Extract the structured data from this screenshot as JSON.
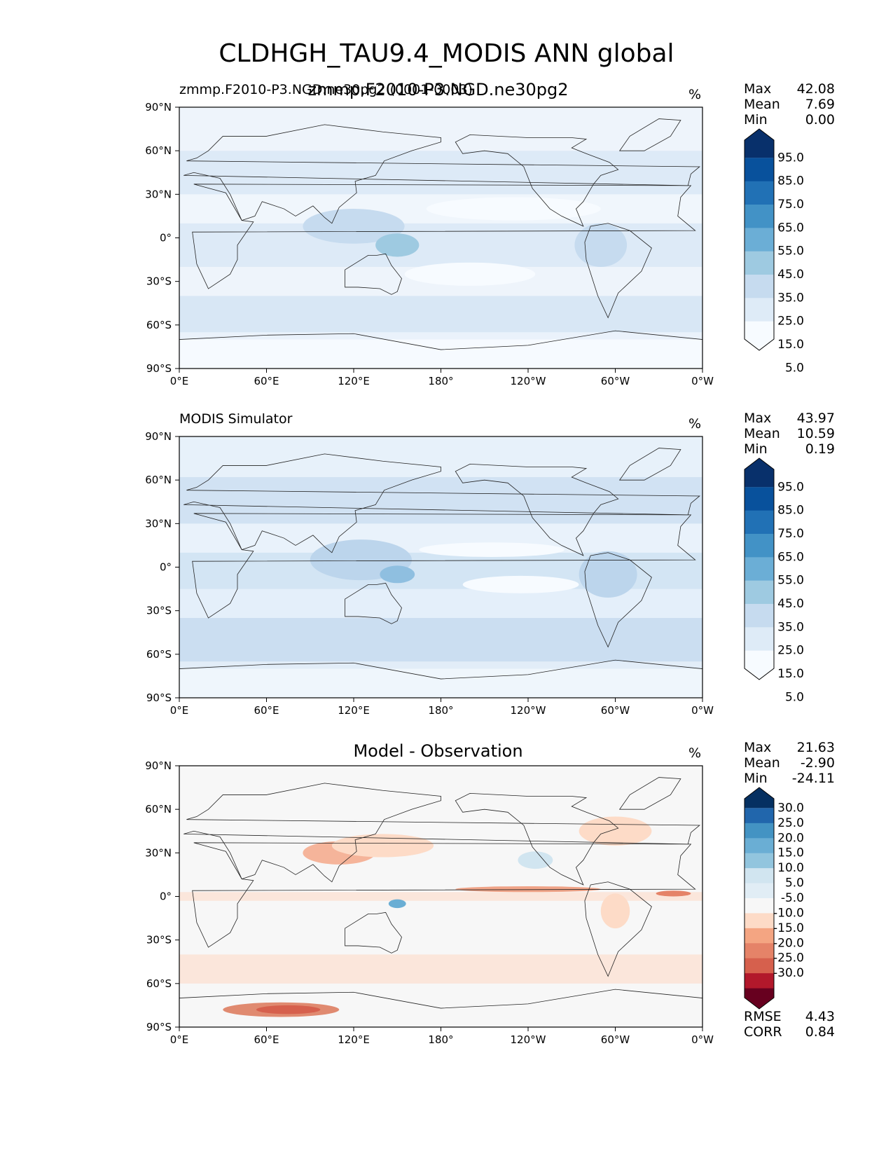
{
  "figure": {
    "title": "CLDHGH_TAU9.4_MODIS ANN global",
    "overlap_subtitle": "zmmp.F2010-P3.NGD.ne30pg2"
  },
  "chart_data": [
    {
      "type": "heatmap",
      "panel": "test",
      "title_left": "zmmp.F2010-P3.NGD.ne30pg2 (0001-0003)",
      "unit": "%",
      "stats": {
        "Max": "42.08",
        "Mean": "7.69",
        "Min": "0.00"
      },
      "xticks": [
        "0°E",
        "60°E",
        "120°E",
        "180°",
        "120°W",
        "60°W",
        "0°W"
      ],
      "yticks": [
        "90°N",
        "60°N",
        "30°N",
        "0°",
        "30°S",
        "60°S",
        "90°S"
      ],
      "xlim": [
        0,
        360
      ],
      "ylim": [
        -90,
        90
      ],
      "colorbar": {
        "labels": [
          "95.0",
          "85.0",
          "75.0",
          "65.0",
          "55.0",
          "45.0",
          "35.0",
          "25.0",
          "15.0",
          "5.0"
        ],
        "colors": [
          "#f7fbff",
          "#deebf7",
          "#c6dbef",
          "#9ecae1",
          "#6baed6",
          "#4292c6",
          "#2171b5",
          "#08519c",
          "#08306b"
        ]
      },
      "field": {
        "fill": "#eaf2fb",
        "bands": [
          {
            "lat": [
              -90,
              -70
            ],
            "color": "#f7fbff"
          },
          {
            "lat": [
              -65,
              -40
            ],
            "color": "#d6e5f4"
          },
          {
            "lat": [
              -40,
              -20
            ],
            "color": "#eef4fb"
          },
          {
            "lat": [
              -20,
              10
            ],
            "color": "#dce9f6"
          },
          {
            "lat": [
              10,
              30
            ],
            "color": "#f1f6fc"
          },
          {
            "lat": [
              30,
              60
            ],
            "color": "#dce9f6"
          },
          {
            "lat": [
              60,
              90
            ],
            "color": "#eef4fb"
          }
        ],
        "patches": [
          {
            "lon": 120,
            "lat": 8,
            "rx": 35,
            "ry": 12,
            "color": "#c6dbef"
          },
          {
            "lon": 150,
            "lat": -5,
            "rx": 15,
            "ry": 8,
            "color": "#9ecae1"
          },
          {
            "lon": 290,
            "lat": -5,
            "rx": 18,
            "ry": 15,
            "color": "#c6dbef"
          },
          {
            "lon": 200,
            "lat": -25,
            "rx": 45,
            "ry": 8,
            "color": "#f7fbff"
          },
          {
            "lon": 230,
            "lat": 20,
            "rx": 60,
            "ry": 8,
            "color": "#f7fbff"
          }
        ]
      }
    },
    {
      "type": "heatmap",
      "panel": "reference",
      "title_left": "MODIS Simulator",
      "unit": "%",
      "stats": {
        "Max": "43.97",
        "Mean": "10.59",
        "Min": "0.19"
      },
      "xticks": [
        "0°E",
        "60°E",
        "120°E",
        "180°",
        "120°W",
        "60°W",
        "0°W"
      ],
      "yticks": [
        "90°N",
        "60°N",
        "30°N",
        "0°",
        "30°S",
        "60°S",
        "90°S"
      ],
      "xlim": [
        0,
        360
      ],
      "ylim": [
        -90,
        90
      ],
      "colorbar": {
        "labels": [
          "95.0",
          "85.0",
          "75.0",
          "65.0",
          "55.0",
          "45.0",
          "35.0",
          "25.0",
          "15.0",
          "5.0"
        ],
        "colors": [
          "#f7fbff",
          "#deebf7",
          "#c6dbef",
          "#9ecae1",
          "#6baed6",
          "#4292c6",
          "#2171b5",
          "#08519c",
          "#08306b"
        ]
      },
      "field": {
        "fill": "#e2edf8",
        "bands": [
          {
            "lat": [
              -90,
              -70
            ],
            "color": "#f1f6fc"
          },
          {
            "lat": [
              -65,
              -35
            ],
            "color": "#c9dcf0"
          },
          {
            "lat": [
              -35,
              -15
            ],
            "color": "#e4eef9"
          },
          {
            "lat": [
              -15,
              10
            ],
            "color": "#d2e3f3"
          },
          {
            "lat": [
              10,
              30
            ],
            "color": "#eaf2fb"
          },
          {
            "lat": [
              30,
              62
            ],
            "color": "#cfe0f2"
          },
          {
            "lat": [
              62,
              90
            ],
            "color": "#e8f1fa"
          }
        ],
        "patches": [
          {
            "lon": 125,
            "lat": 5,
            "rx": 35,
            "ry": 14,
            "color": "#bcd5ec"
          },
          {
            "lon": 150,
            "lat": -5,
            "rx": 12,
            "ry": 6,
            "color": "#8fbfe0"
          },
          {
            "lon": 295,
            "lat": -5,
            "rx": 20,
            "ry": 16,
            "color": "#bcd5ec"
          },
          {
            "lon": 215,
            "lat": 12,
            "rx": 50,
            "ry": 5,
            "color": "#f7fbff"
          },
          {
            "lon": 235,
            "lat": -12,
            "rx": 40,
            "ry": 6,
            "color": "#f7fbff"
          }
        ]
      }
    },
    {
      "type": "heatmap",
      "panel": "difference",
      "title_center": "Model - Observation",
      "unit": "%",
      "stats": {
        "Max": "21.63",
        "Mean": "-2.90",
        "Min": "-24.11"
      },
      "metrics": {
        "RMSE": "4.43",
        "CORR": "0.84"
      },
      "xticks": [
        "0°E",
        "60°E",
        "120°E",
        "180°",
        "120°W",
        "60°W",
        "0°W"
      ],
      "yticks": [
        "90°N",
        "60°N",
        "30°N",
        "0°",
        "30°S",
        "60°S",
        "90°S"
      ],
      "xlim": [
        0,
        360
      ],
      "ylim": [
        -90,
        90
      ],
      "colorbar": {
        "labels": [
          "30.0",
          "25.0",
          "20.0",
          "15.0",
          "10.0",
          "5.0",
          "-5.0",
          "-10.0",
          "-15.0",
          "-20.0",
          "-25.0",
          "-30.0"
        ],
        "colors": [
          "#67001f",
          "#b2182b",
          "#d6604d",
          "#e58368",
          "#f4a582",
          "#fddbc7",
          "#f7f7f7",
          "#e1edf5",
          "#d1e5f0",
          "#92c5de",
          "#6aaed4",
          "#4393c3",
          "#2166ac",
          "#053061"
        ]
      },
      "field": {
        "fill": "#f7f7f7",
        "bands": [
          {
            "lat": [
              -60,
              -40
            ],
            "color": "#fbe3d7"
          },
          {
            "lat": [
              -3,
              3
            ],
            "color": "#fbe3d7"
          }
        ],
        "patches": [
          {
            "lon": 70,
            "lat": -78,
            "rx": 40,
            "ry": 5,
            "color": "#e08a70"
          },
          {
            "lon": 75,
            "lat": -78,
            "rx": 22,
            "ry": 3,
            "color": "#d6604d"
          },
          {
            "lon": 110,
            "lat": 30,
            "rx": 25,
            "ry": 8,
            "color": "#f5b49a"
          },
          {
            "lon": 140,
            "lat": 35,
            "rx": 35,
            "ry": 8,
            "color": "#fddbc7"
          },
          {
            "lon": 240,
            "lat": 5,
            "rx": 50,
            "ry": 2,
            "color": "#f0a488"
          },
          {
            "lon": 340,
            "lat": 2,
            "rx": 12,
            "ry": 2,
            "color": "#e58368"
          },
          {
            "lon": 150,
            "lat": -5,
            "rx": 6,
            "ry": 3,
            "color": "#6aaed4"
          },
          {
            "lon": 300,
            "lat": -10,
            "rx": 10,
            "ry": 12,
            "color": "#fddbc7"
          },
          {
            "lon": 300,
            "lat": 45,
            "rx": 25,
            "ry": 10,
            "color": "#fddbc7"
          },
          {
            "lon": 245,
            "lat": 25,
            "rx": 12,
            "ry": 6,
            "color": "#d1e5f0"
          }
        ]
      }
    }
  ]
}
